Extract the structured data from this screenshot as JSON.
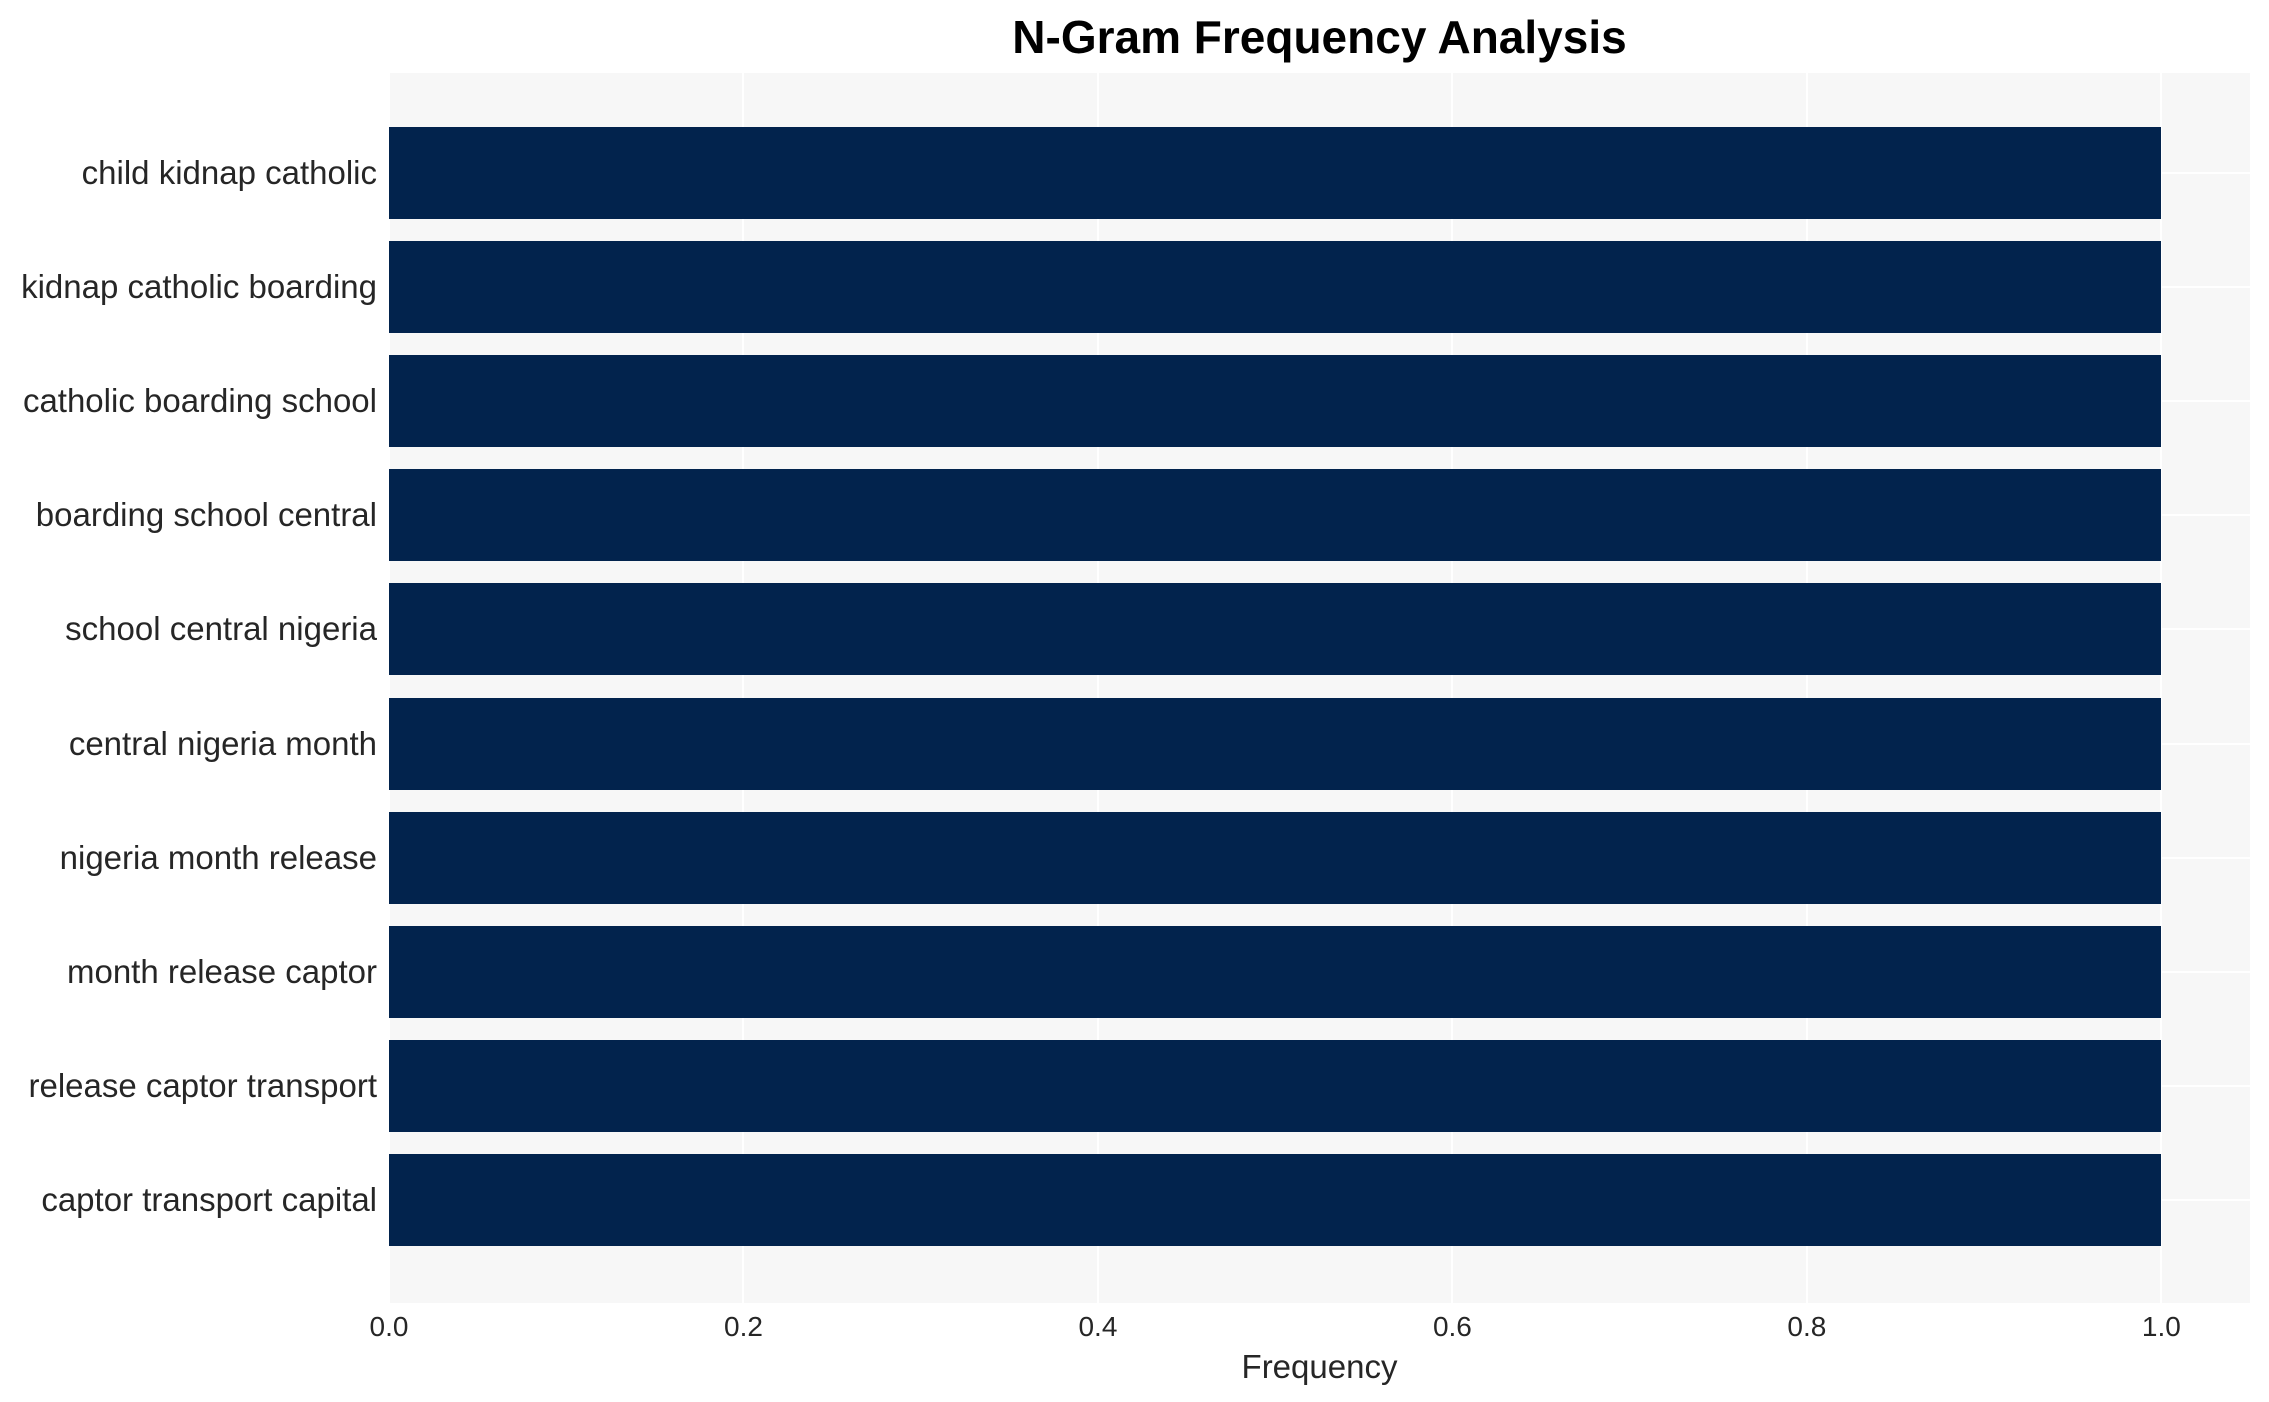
{
  "title": "N-Gram Frequency Analysis",
  "chart_data": {
    "type": "bar",
    "orientation": "horizontal",
    "title": "N-Gram Frequency Analysis",
    "categories": [
      "child kidnap catholic",
      "kidnap catholic boarding",
      "catholic boarding school",
      "boarding school central",
      "school central nigeria",
      "central nigeria month",
      "nigeria month release",
      "month release captor",
      "release captor transport",
      "captor transport capital"
    ],
    "values": [
      1.0,
      1.0,
      1.0,
      1.0,
      1.0,
      1.0,
      1.0,
      1.0,
      1.0,
      1.0
    ],
    "xlabel": "Frequency",
    "ylabel": "",
    "xlim": [
      0,
      1.05
    ],
    "xticks": [
      0.0,
      0.2,
      0.4,
      0.6,
      0.8,
      1.0
    ],
    "xtick_labels": [
      "0.0",
      "0.2",
      "0.4",
      "0.6",
      "0.8",
      "1.0"
    ],
    "grid": true,
    "legend": "none",
    "colors": {
      "bar": "#02234d",
      "plot_background": "#f7f7f7",
      "gridline": "#ffffff",
      "tick_text": "#262626",
      "title_text": "#000000"
    }
  }
}
